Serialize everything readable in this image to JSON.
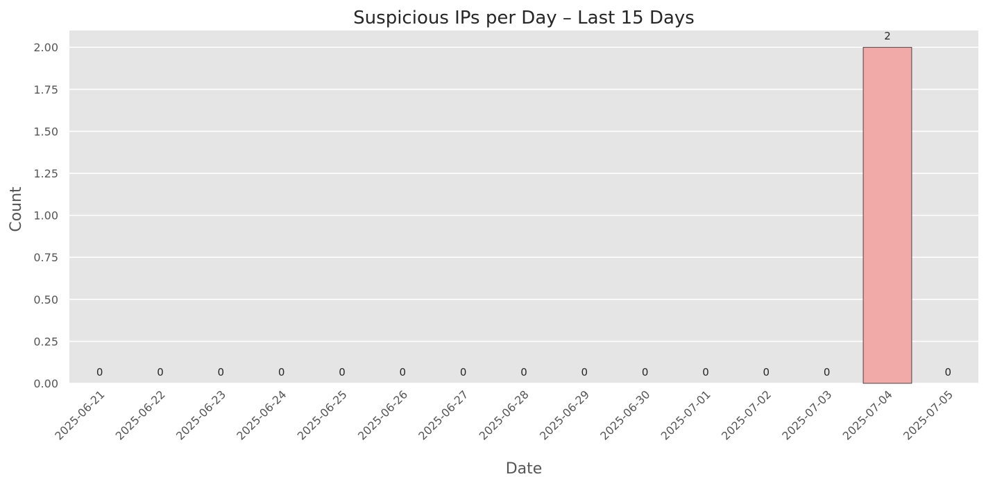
{
  "chart_data": {
    "type": "bar",
    "title": "Suspicious IPs per Day – Last 15 Days",
    "xlabel": "Date",
    "ylabel": "Count",
    "categories": [
      "2025-06-21",
      "2025-06-22",
      "2025-06-23",
      "2025-06-24",
      "2025-06-25",
      "2025-06-26",
      "2025-06-27",
      "2025-06-28",
      "2025-06-29",
      "2025-06-30",
      "2025-07-01",
      "2025-07-02",
      "2025-07-03",
      "2025-07-04",
      "2025-07-05"
    ],
    "values": [
      0,
      0,
      0,
      0,
      0,
      0,
      0,
      0,
      0,
      0,
      0,
      0,
      0,
      2,
      0
    ],
    "data_labels": [
      "0",
      "0",
      "0",
      "0",
      "0",
      "0",
      "0",
      "0",
      "0",
      "0",
      "0",
      "0",
      "0",
      "2",
      "0"
    ],
    "yticks": [
      0,
      0.25,
      0.5,
      0.75,
      1,
      1.25,
      1.5,
      1.75,
      2
    ],
    "ytick_labels": [
      "0.00",
      "0.25",
      "0.50",
      "0.75",
      "1.00",
      "1.25",
      "1.50",
      "1.75",
      "2.00"
    ],
    "ylim": [
      0,
      2.1
    ],
    "grid": true,
    "legend": "none",
    "colors": {
      "bar": "#f1aaa8",
      "bar_edge": "#222222",
      "plot_background": "#e5e5e5",
      "gridline": "#ffffff",
      "title_text": "#262626",
      "tick_text": "#555555",
      "label_text": "#555555",
      "data_label_text": "#262626"
    }
  }
}
